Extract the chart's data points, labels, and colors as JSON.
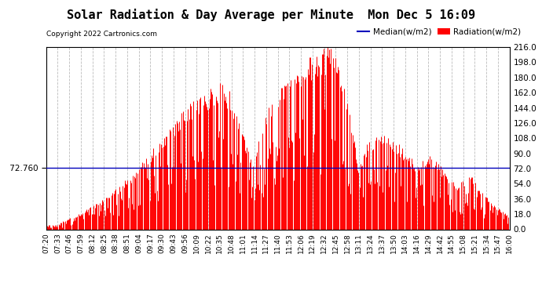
{
  "title": "Solar Radiation & Day Average per Minute  Mon Dec 5 16:09",
  "copyright": "Copyright 2022 Cartronics.com",
  "median_label": "Median(w/m2)",
  "radiation_label": "Radiation(w/m2)",
  "median_value": 72.76,
  "median_color": "#0000bb",
  "radiation_color": "#ff0000",
  "y_right_ticks": [
    0.0,
    18.0,
    36.0,
    54.0,
    72.0,
    90.0,
    108.0,
    126.0,
    144.0,
    162.0,
    180.0,
    198.0,
    216.0
  ],
  "background_color": "#ffffff",
  "grid_color": "#aaaaaa",
  "title_color": "#000000",
  "title_fontsize": 11,
  "x_tick_labels": [
    "07:20",
    "07:33",
    "07:46",
    "07:59",
    "08:12",
    "08:25",
    "08:38",
    "08:51",
    "09:04",
    "09:17",
    "09:30",
    "09:43",
    "09:56",
    "10:09",
    "10:22",
    "10:35",
    "10:48",
    "11:01",
    "11:14",
    "11:27",
    "11:40",
    "11:53",
    "12:06",
    "12:19",
    "12:32",
    "12:45",
    "12:58",
    "13:11",
    "13:24",
    "13:37",
    "13:50",
    "14:03",
    "14:16",
    "14:29",
    "14:42",
    "14:55",
    "15:08",
    "15:21",
    "15:34",
    "15:47",
    "16:00"
  ]
}
